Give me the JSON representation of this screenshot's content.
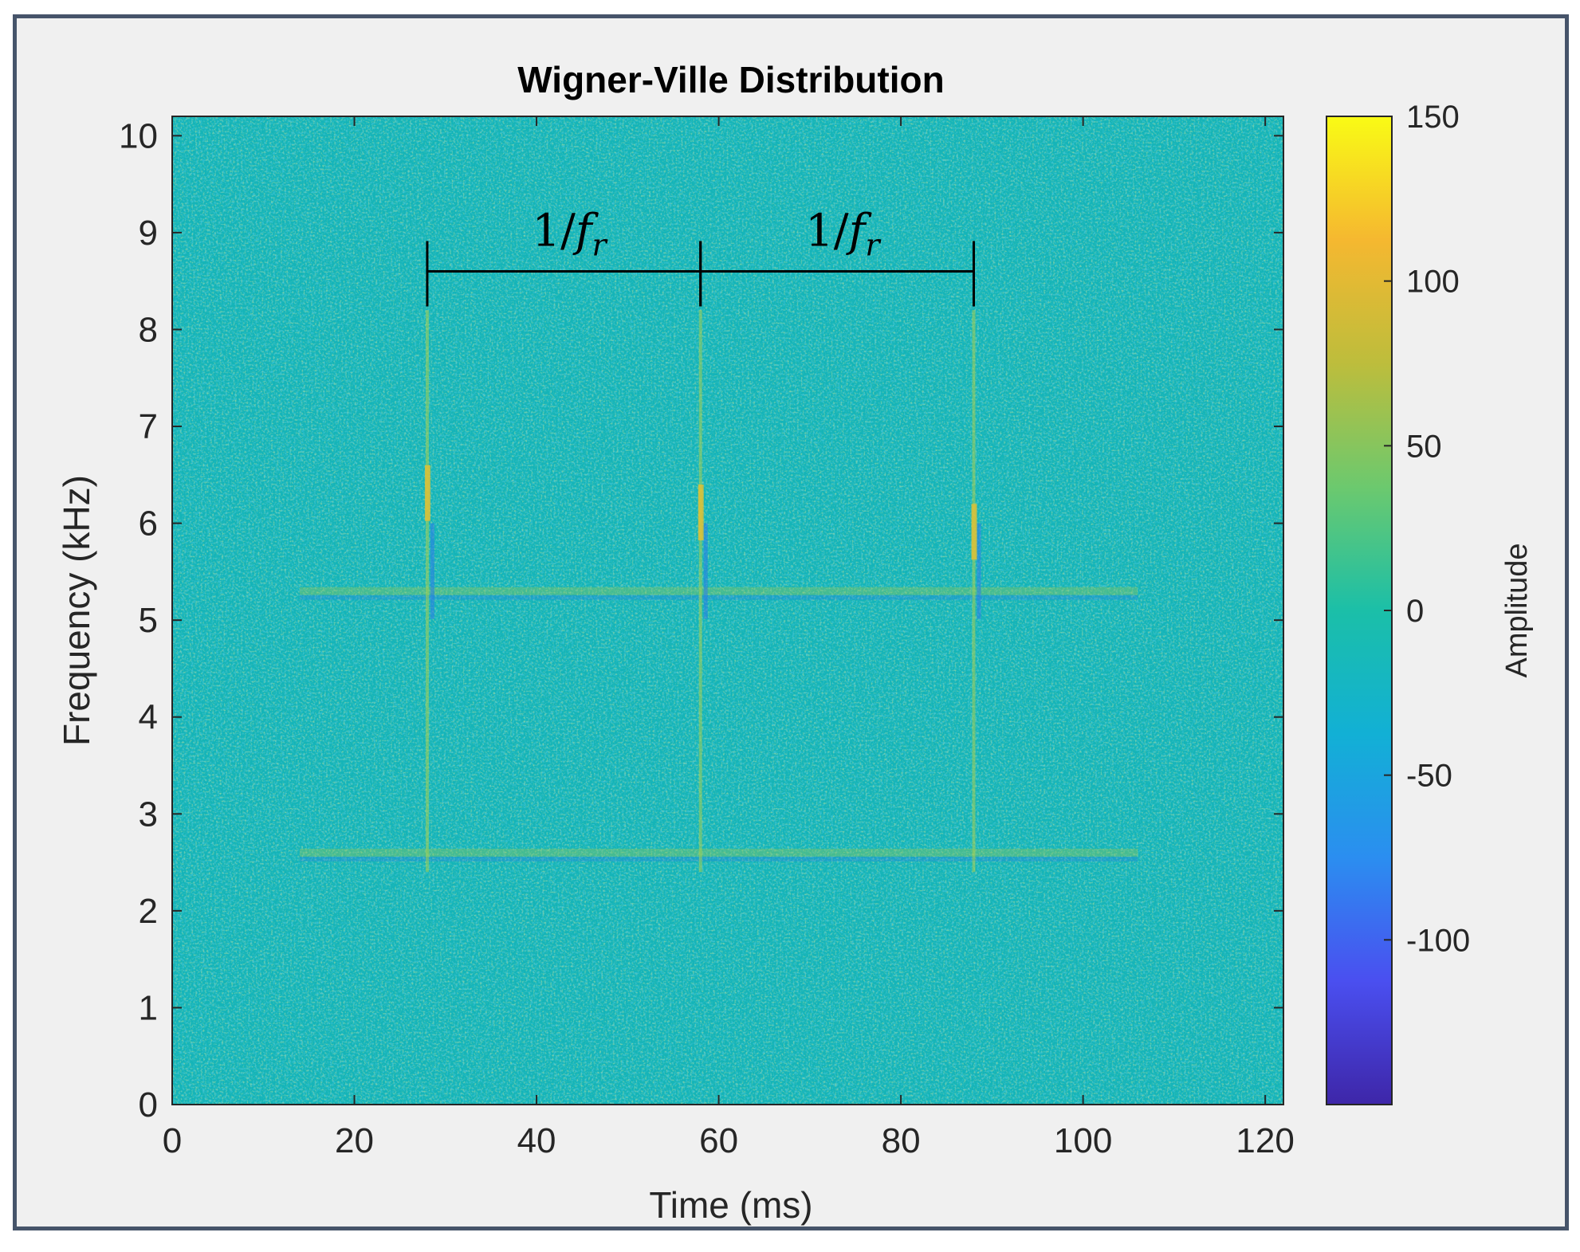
{
  "chart_data": {
    "type": "heatmap",
    "title": "Wigner-Ville Distribution",
    "xlabel": "Time (ms)",
    "ylabel": "Frequency (kHz)",
    "xlim": [
      0,
      122
    ],
    "ylim": [
      0,
      10.2
    ],
    "x_ticks": [
      "0",
      "20",
      "40",
      "60",
      "80",
      "100",
      "120"
    ],
    "y_ticks": [
      "0",
      "1",
      "2",
      "3",
      "4",
      "5",
      "6",
      "7",
      "8",
      "9",
      "10"
    ],
    "colorbar": {
      "label": "Amplitude",
      "range": [
        -150,
        150
      ],
      "ticks": [
        "150",
        "100",
        "50",
        "0",
        "-50",
        "-100"
      ],
      "colormap": "parula",
      "colors": [
        "#3e26a8",
        "#4a4ff0",
        "#2b8ef0",
        "#12b0d5",
        "#1bbfa8",
        "#6cc96e",
        "#bdbd3c",
        "#f5b830",
        "#f9fb15"
      ]
    },
    "background_value": 0,
    "features": {
      "vertical_impulses_time_ms": [
        28,
        58,
        88
      ],
      "horizontal_bands_freq_khz": [
        2.6,
        5.3
      ],
      "impulse_peak_amplitude": 110
    },
    "annotations": [
      {
        "text": "1/",
        "italic": "f",
        "subscript": "r",
        "from_ms": 28,
        "to_ms": 58,
        "freq_khz": 8.6
      },
      {
        "text": "1/",
        "italic": "f",
        "subscript": "r",
        "from_ms": 58,
        "to_ms": 88,
        "freq_khz": 8.6
      }
    ]
  }
}
